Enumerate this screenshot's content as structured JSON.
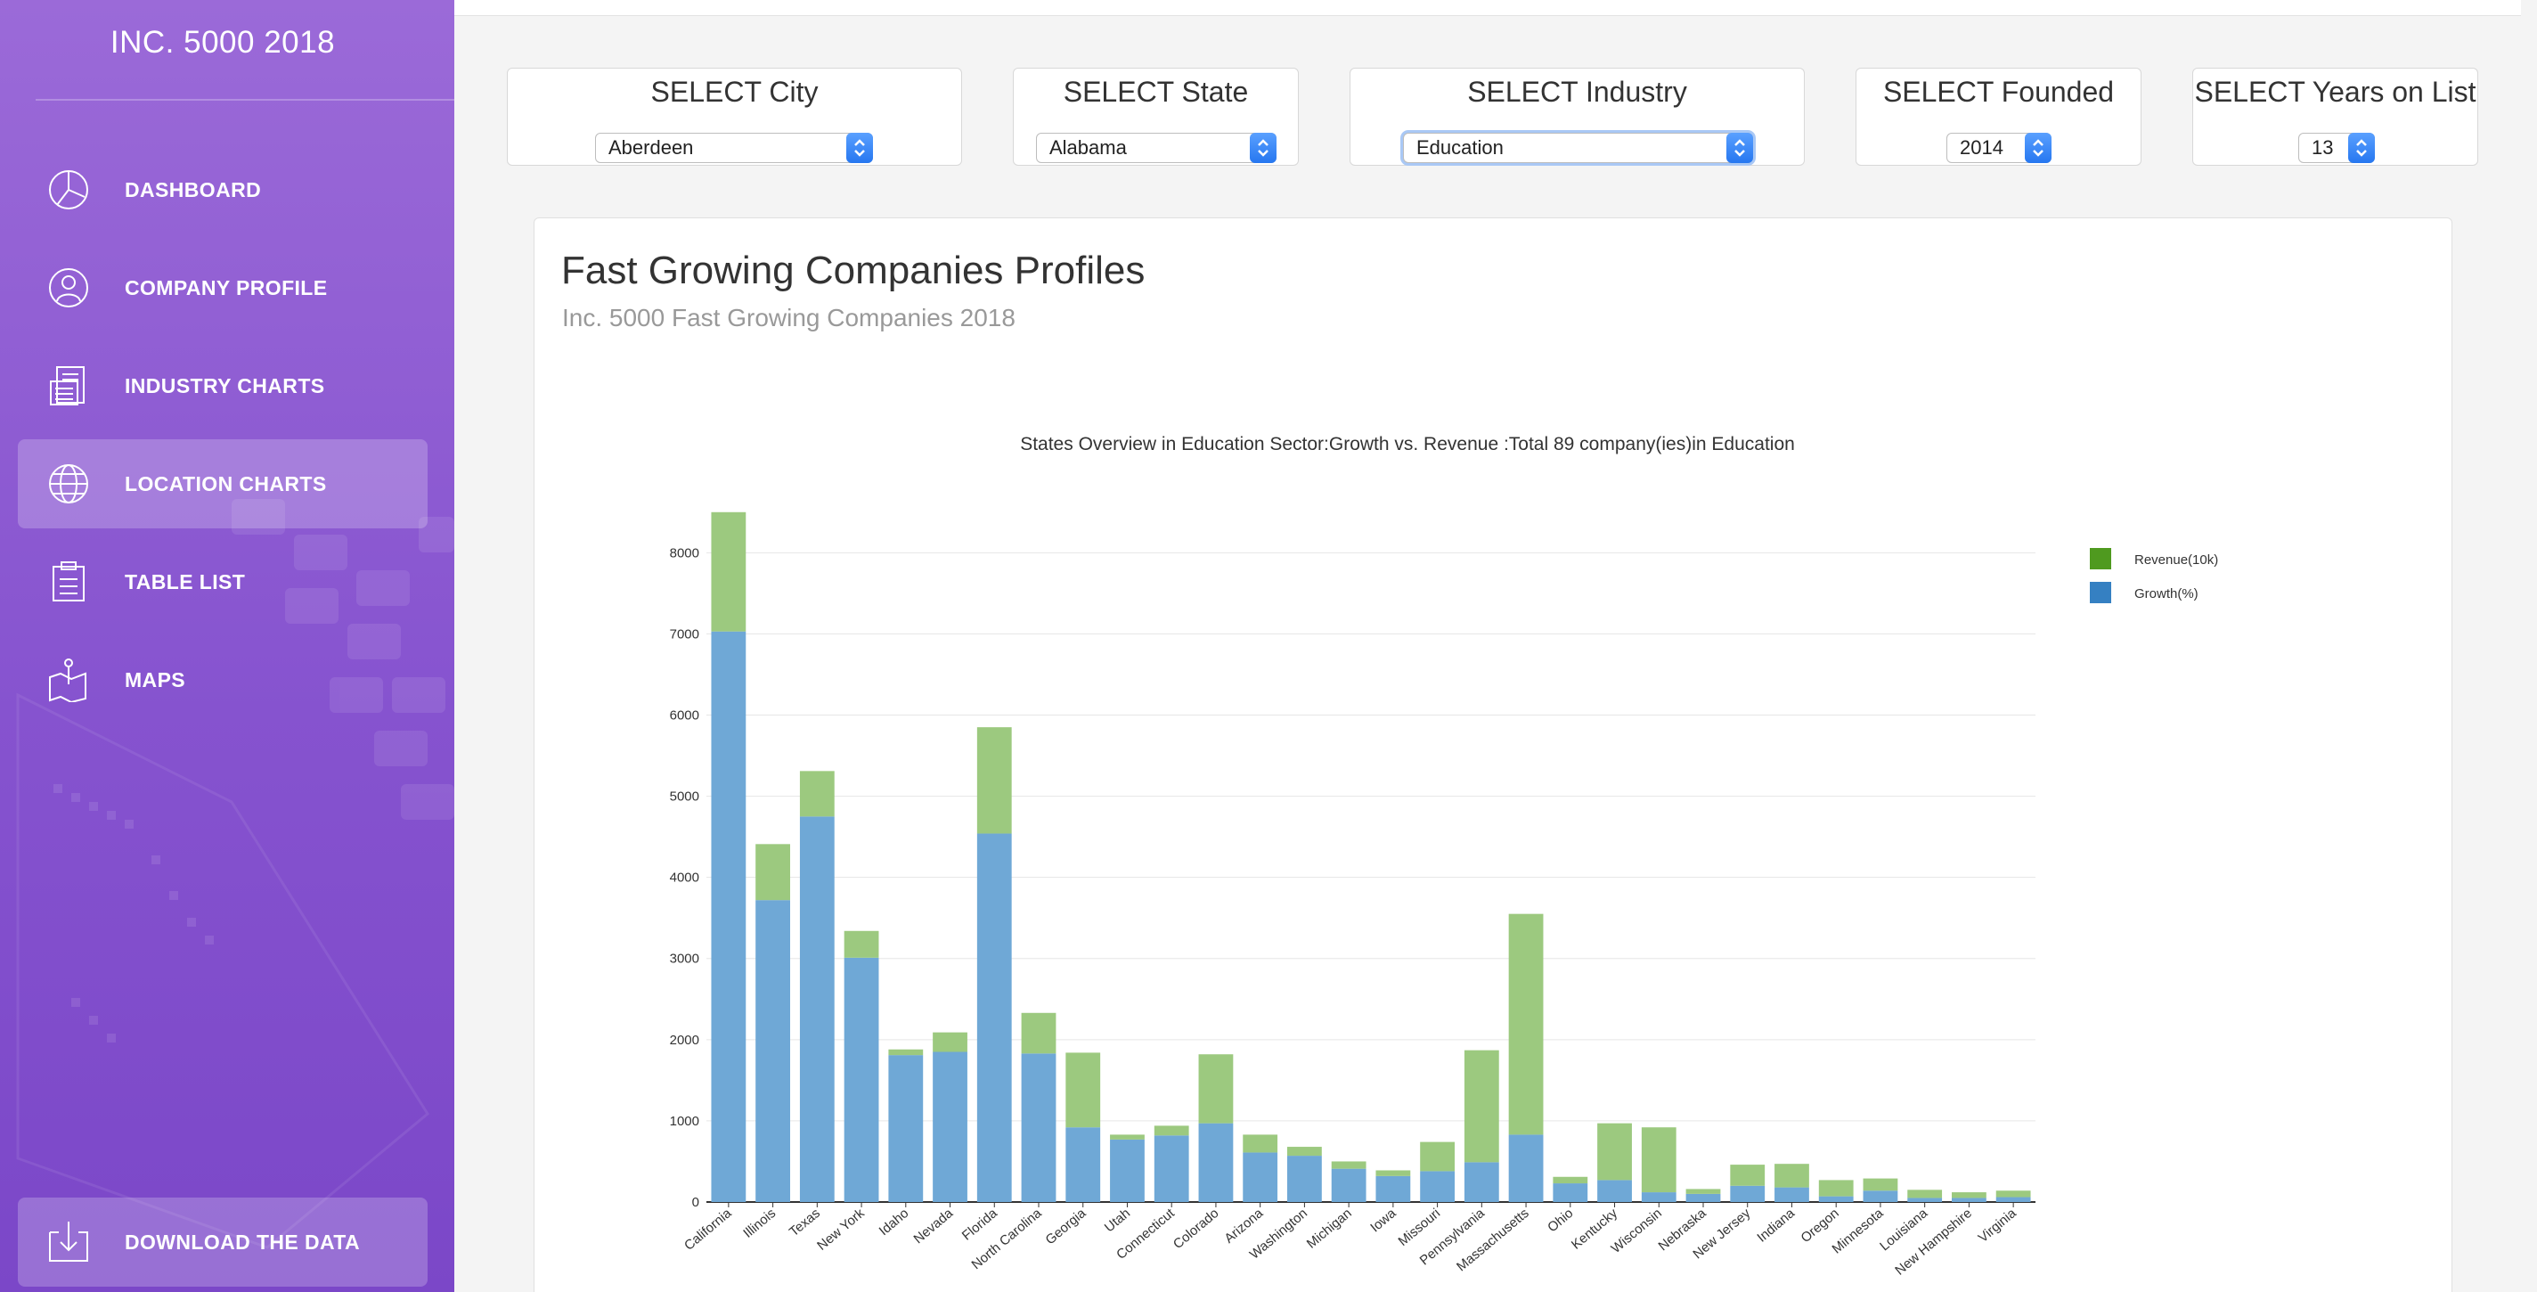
{
  "app": {
    "title": "INC. 5000 2018"
  },
  "sidebar": {
    "items": [
      {
        "label": "DASHBOARD",
        "icon": "dashboard-icon",
        "active": false
      },
      {
        "label": "COMPANY PROFILE",
        "icon": "user-icon",
        "active": false
      },
      {
        "label": "INDUSTRY CHARTS",
        "icon": "document-icon",
        "active": false
      },
      {
        "label": "LOCATION CHARTS",
        "icon": "globe-icon",
        "active": true
      },
      {
        "label": "TABLE LIST",
        "icon": "clipboard-icon",
        "active": false
      },
      {
        "label": "MAPS",
        "icon": "map-icon",
        "active": false
      }
    ],
    "download": {
      "label": "DOWNLOAD THE DATA",
      "icon": "download-icon"
    }
  },
  "filters": {
    "city": {
      "title": "SELECT City",
      "value": "Aberdeen"
    },
    "state": {
      "title": "SELECT State",
      "value": "Alabama"
    },
    "industry": {
      "title": "SELECT Industry",
      "value": "Education"
    },
    "founded": {
      "title": "SELECT Founded",
      "value": "2014"
    },
    "years": {
      "title": "SELECT Years on List",
      "value": "13"
    }
  },
  "card": {
    "title": "Fast Growing Companies Profiles",
    "subtitle": "Inc. 5000 Fast Growing Companies 2018"
  },
  "colors": {
    "revenue": "#9cc97f",
    "growth": "#6fa8d6",
    "revenue_legend": "#4f9a1f",
    "growth_legend": "#3580c2"
  },
  "chart_data": {
    "type": "bar",
    "stacked": true,
    "title": "States Overview in Education Sector:Growth vs. Revenue :Total 89 company(ies)in Education",
    "categories": [
      "California",
      "Illinois",
      "Texas",
      "New York",
      "Idaho",
      "Nevada",
      "Florida",
      "North Carolina",
      "Georgia",
      "Utah",
      "Connecticut",
      "Colorado",
      "Arizona",
      "Washington",
      "Michigan",
      "Iowa",
      "Missouri",
      "Pennsylvania",
      "Massachusetts",
      "Ohio",
      "Kentucky",
      "Wisconsin",
      "Nebraska",
      "New Jersey",
      "Indiana",
      "Oregon",
      "Minnesota",
      "Louisiana",
      "New Hampshire",
      "Virginia"
    ],
    "series": [
      {
        "name": "Growth(%)",
        "values": [
          7030,
          3720,
          4750,
          3010,
          1810,
          1850,
          4540,
          1830,
          920,
          770,
          820,
          970,
          610,
          570,
          410,
          320,
          380,
          490,
          830,
          230,
          270,
          120,
          100,
          200,
          180,
          70,
          140,
          50,
          50,
          60
        ]
      },
      {
        "name": "Revenue(10k)",
        "values": [
          1470,
          690,
          560,
          330,
          70,
          240,
          1310,
          500,
          920,
          60,
          120,
          850,
          220,
          110,
          90,
          70,
          360,
          1380,
          2720,
          80,
          700,
          800,
          60,
          260,
          290,
          200,
          150,
          100,
          70,
          80
        ]
      }
    ],
    "ylim": [
      0,
      8500
    ],
    "yticks": [
      0,
      1000,
      2000,
      3000,
      4000,
      5000,
      6000,
      7000,
      8000
    ],
    "grid": true,
    "legend": "top-right"
  }
}
